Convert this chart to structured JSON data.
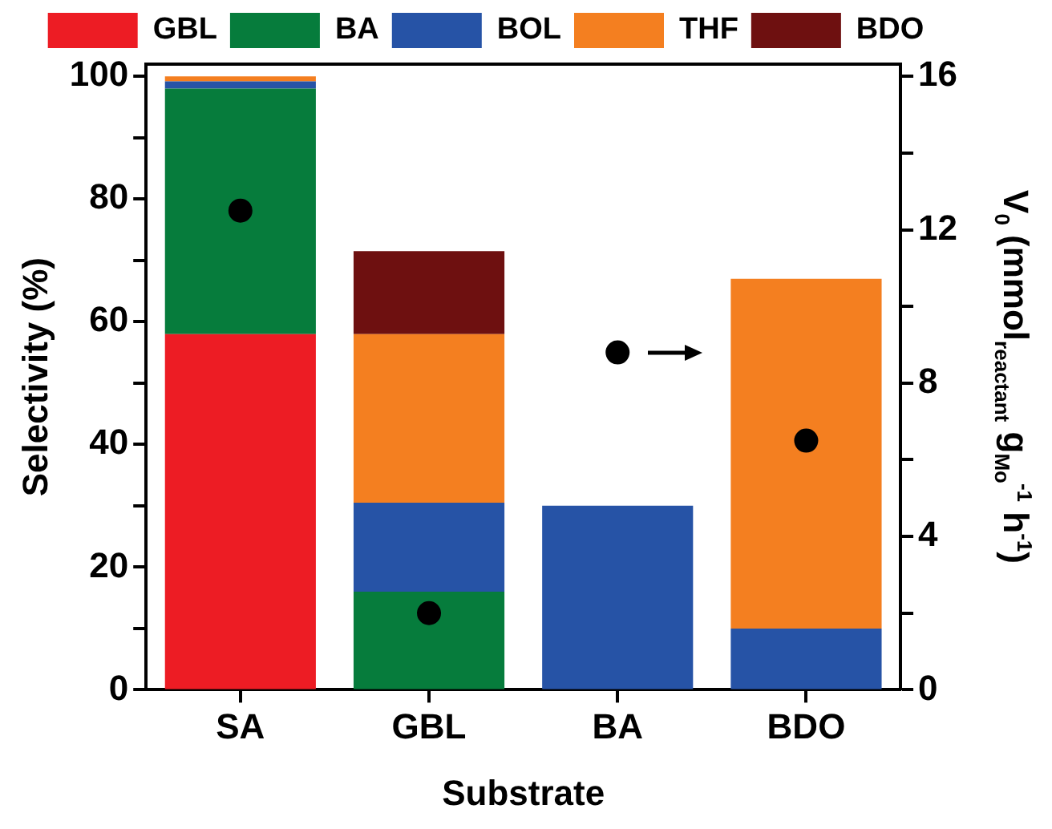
{
  "chart_data": {
    "type": "bar",
    "stacked": true,
    "categories": [
      "SA",
      "GBL",
      "BA",
      "BDO"
    ],
    "xlabel": "Substrate",
    "ylabel": "Selectivity (%)",
    "y2label": "V$_{0}$ (mmol$_{reactant}$ g$_{Mo}$$^{-1}$ h$^{-1}$)",
    "series": [
      {
        "name": "GBL",
        "color": "#ed1c24",
        "values": [
          58,
          0,
          0,
          0
        ]
      },
      {
        "name": "BA",
        "color": "#067c3c",
        "values": [
          40,
          16,
          0,
          0
        ]
      },
      {
        "name": "BOL",
        "color": "#2653a6",
        "values": [
          1.2,
          14.5,
          30,
          10
        ]
      },
      {
        "name": "THF",
        "color": "#f47f20",
        "values": [
          0.8,
          27.5,
          0,
          57
        ]
      },
      {
        "name": "BDO",
        "color": "#6e1010",
        "values": [
          0,
          13.5,
          0,
          0
        ]
      },
      {
        "type": "scatter",
        "axis": "y2",
        "color": "#000000",
        "x": [
          "SA",
          "GBL",
          "BA",
          "BDO"
        ],
        "values": [
          12.5,
          2,
          8.8,
          6.5
        ]
      }
    ],
    "ylim": [
      0,
      102
    ],
    "yticks": [
      0,
      {
        "value": 10,
        "label": null
      },
      20,
      {
        "value": 30,
        "label": null
      },
      40,
      {
        "value": 50,
        "label": null
      },
      60,
      {
        "value": 70,
        "label": null
      },
      80,
      {
        "value": 90,
        "label": null
      },
      100
    ],
    "y2lim": [
      0,
      16.32
    ],
    "y2ticks": [
      0,
      {
        "value": 2,
        "label": null
      },
      4,
      {
        "value": 6,
        "label": null
      },
      8,
      {
        "value": 10,
        "label": null
      },
      12,
      {
        "value": 14,
        "label": null
      },
      16
    ],
    "legend": "top",
    "grid": false,
    "marker": "circle"
  }
}
